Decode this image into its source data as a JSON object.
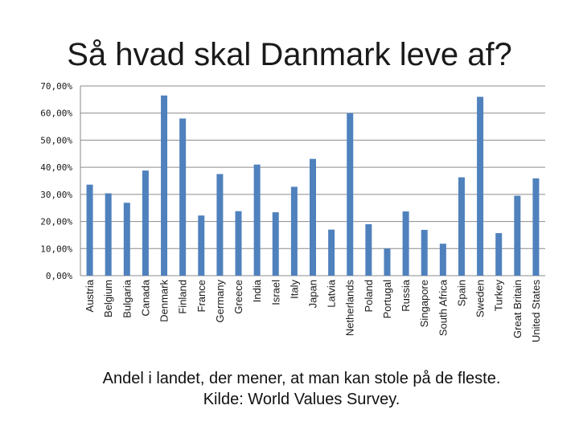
{
  "slide": {
    "title": "Så hvad skal Danmark leve af?",
    "caption_line1": "Andel i landet, der mener, at man kan stole på de fleste.",
    "caption_line2": "Kilde: World Values Survey."
  },
  "colors": {
    "bar": "#4f81bd",
    "grid": "#8c8c8c",
    "axis": "#888888",
    "text": "#1a1a1a"
  },
  "chart_data": {
    "type": "bar",
    "title": "",
    "xlabel": "",
    "ylabel": "",
    "ylim": [
      0,
      70
    ],
    "yticks": [
      0,
      10,
      20,
      30,
      40,
      50,
      60,
      70
    ],
    "ytick_labels": [
      "0,00%",
      "10,00%",
      "20,00%",
      "30,00%",
      "40,00%",
      "50,00%",
      "60,00%",
      "70,00%"
    ],
    "grid": true,
    "categories": [
      "Austria",
      "Belgium",
      "Bulgaria",
      "Canada",
      "Denmark",
      "Finland",
      "France",
      "Germany",
      "Greece",
      "India",
      "Israel",
      "Italy",
      "Japan",
      "Latvia",
      "Netherlands",
      "Poland",
      "Portugal",
      "Russia",
      "Singapore",
      "South Africa",
      "Spain",
      "Sweden",
      "Turkey",
      "Great Britain",
      "United States"
    ],
    "values": [
      33.6,
      30.4,
      26.9,
      38.8,
      66.5,
      58.0,
      22.2,
      37.5,
      23.8,
      41.0,
      23.4,
      32.8,
      43.1,
      17.0,
      60.0,
      19.0,
      10.0,
      23.7,
      16.9,
      11.8,
      36.3,
      66.0,
      15.7,
      29.5,
      35.9
    ]
  }
}
